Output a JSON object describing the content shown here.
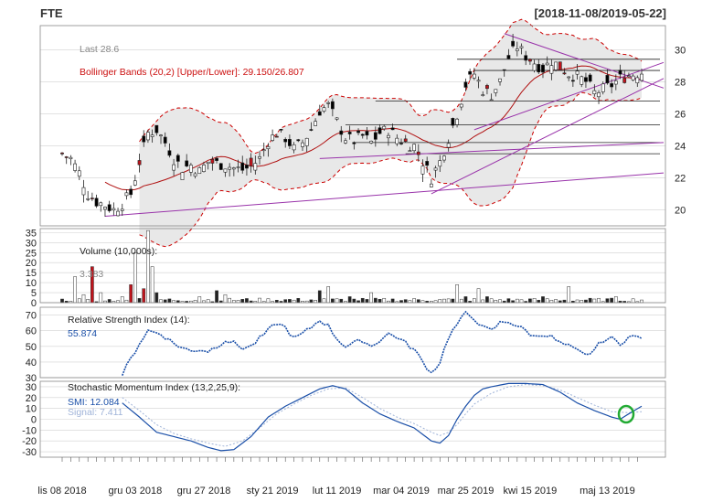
{
  "header": {
    "symbol": "FTE",
    "date_range": "[2018-11-08/2019-05-22]"
  },
  "price_panel": {
    "last_label": "Last 28.6",
    "bollinger_label": "Bollinger Bands (20,2) [Upper/Lower]: 29.150/26.807",
    "y_ticks": [
      20,
      22,
      24,
      26,
      28,
      30
    ],
    "ylim": [
      19,
      31.5
    ]
  },
  "volume_panel": {
    "title": "Volume (10,000s):",
    "last_value": "3.383",
    "y_ticks": [
      0,
      5,
      10,
      15,
      20,
      25,
      30,
      35
    ],
    "ylim": [
      0,
      37
    ]
  },
  "rsi_panel": {
    "title": "Relative Strength Index (14):",
    "last_value": "55.874",
    "y_ticks": [
      30,
      40,
      50,
      60,
      70
    ],
    "ylim": [
      30,
      75
    ]
  },
  "smi_panel": {
    "title": "Stochastic Momentum Index (13,2,25,9):",
    "smi_label": "SMI: 12.084",
    "signal_label": "Signal: 7.411",
    "y_ticks": [
      -30,
      -20,
      -10,
      0,
      10,
      20,
      30
    ],
    "ylim": [
      -35,
      35
    ]
  },
  "x_axis": {
    "labels": [
      "lis 08 2018",
      "gru 03 2018",
      "gru 27 2018",
      "sty 21 2019",
      "lut 11 2019",
      "mar 04 2019",
      "mar 25 2019",
      "kwi 15 2019",
      "maj 13 2019"
    ],
    "label_bar_index": [
      0,
      17,
      33,
      49,
      64,
      79,
      94,
      109,
      127
    ]
  },
  "colors": {
    "up_candle": "#ffffff",
    "down_candle": "#000000",
    "red_candle": "#c0141c",
    "bollinger": "#cc0000",
    "sma": "#b01010",
    "trendline": "#9933aa",
    "rsi_line": "#1a4fa8",
    "smi_line": "#1a4fa8",
    "signal_line": "#9fb3d8",
    "band_fill": "#e8e8e8",
    "grid": "#d0d0d0",
    "marker_circle": "#22aa33"
  },
  "chart_data": {
    "type": "candlestick",
    "bars": 136,
    "price_segments": [
      [
        0,
        23.5
      ],
      [
        2,
        23.2
      ],
      [
        4,
        22.3
      ],
      [
        6,
        21.0
      ],
      [
        8,
        20.5
      ],
      [
        10,
        20.3
      ],
      [
        12,
        20.0
      ],
      [
        14,
        20.4
      ],
      [
        16,
        21.0
      ],
      [
        18,
        23.0
      ],
      [
        20,
        24.8
      ],
      [
        22,
        25.0
      ],
      [
        24,
        24.2
      ],
      [
        26,
        23.2
      ],
      [
        28,
        22.6
      ],
      [
        30,
        22.8
      ],
      [
        32,
        22.4
      ],
      [
        34,
        23.0
      ],
      [
        36,
        22.9
      ],
      [
        38,
        22.8
      ],
      [
        40,
        22.6
      ],
      [
        42,
        22.5
      ],
      [
        44,
        22.7
      ],
      [
        46,
        23.2
      ],
      [
        48,
        24.3
      ],
      [
        50,
        24.8
      ],
      [
        52,
        24.5
      ],
      [
        54,
        23.8
      ],
      [
        56,
        24.2
      ],
      [
        58,
        25.0
      ],
      [
        60,
        26.2
      ],
      [
        62,
        26.5
      ],
      [
        64,
        25.5
      ],
      [
        66,
        24.5
      ],
      [
        68,
        24.3
      ],
      [
        70,
        24.6
      ],
      [
        72,
        24.2
      ],
      [
        74,
        24.8
      ],
      [
        76,
        25.0
      ],
      [
        78,
        24.5
      ],
      [
        80,
        24.2
      ],
      [
        82,
        24.0
      ],
      [
        84,
        23.0
      ],
      [
        86,
        22.0
      ],
      [
        88,
        23.0
      ],
      [
        90,
        24.5
      ],
      [
        92,
        26.0
      ],
      [
        94,
        27.8
      ],
      [
        96,
        28.5
      ],
      [
        98,
        27.5
      ],
      [
        100,
        27.2
      ],
      [
        102,
        28.0
      ],
      [
        104,
        29.5
      ],
      [
        106,
        30.2
      ],
      [
        108,
        29.6
      ],
      [
        110,
        29.2
      ],
      [
        112,
        28.8
      ],
      [
        114,
        29.3
      ],
      [
        116,
        28.9
      ],
      [
        118,
        28.5
      ],
      [
        120,
        28.3
      ],
      [
        122,
        28.0
      ],
      [
        124,
        27.3
      ],
      [
        126,
        27.5
      ],
      [
        128,
        27.8
      ],
      [
        130,
        28.2
      ],
      [
        132,
        28.4
      ],
      [
        135,
        28.6
      ]
    ],
    "volume_spikes": [
      [
        3,
        13
      ],
      [
        5,
        4
      ],
      [
        7,
        18
      ],
      [
        9,
        5
      ],
      [
        14,
        3
      ],
      [
        16,
        9
      ],
      [
        17,
        25
      ],
      [
        19,
        7
      ],
      [
        20,
        36
      ],
      [
        21,
        18
      ],
      [
        22,
        5
      ],
      [
        32,
        3
      ],
      [
        36,
        6
      ],
      [
        38,
        4
      ],
      [
        60,
        6
      ],
      [
        62,
        8
      ],
      [
        67,
        3
      ],
      [
        72,
        5
      ],
      [
        92,
        9
      ],
      [
        94,
        3
      ],
      [
        97,
        7
      ],
      [
        99,
        3
      ],
      [
        112,
        3
      ],
      [
        118,
        8
      ],
      [
        129,
        3
      ]
    ],
    "rsi_segments": [
      [
        14,
        32
      ],
      [
        18,
        52
      ],
      [
        20,
        60
      ],
      [
        23,
        58
      ],
      [
        26,
        52
      ],
      [
        28,
        49
      ],
      [
        30,
        47
      ],
      [
        32,
        48
      ],
      [
        34,
        47
      ],
      [
        36,
        50
      ],
      [
        38,
        54
      ],
      [
        40,
        52
      ],
      [
        42,
        49
      ],
      [
        44,
        50
      ],
      [
        46,
        55
      ],
      [
        48,
        60
      ],
      [
        50,
        65
      ],
      [
        52,
        62
      ],
      [
        54,
        55
      ],
      [
        56,
        58
      ],
      [
        58,
        62
      ],
      [
        60,
        67
      ],
      [
        62,
        63
      ],
      [
        64,
        55
      ],
      [
        66,
        50
      ],
      [
        68,
        52
      ],
      [
        70,
        54
      ],
      [
        72,
        50
      ],
      [
        74,
        54
      ],
      [
        76,
        58
      ],
      [
        78,
        56
      ],
      [
        80,
        52
      ],
      [
        82,
        48
      ],
      [
        84,
        40
      ],
      [
        86,
        33
      ],
      [
        88,
        40
      ],
      [
        90,
        56
      ],
      [
        92,
        64
      ],
      [
        94,
        71
      ],
      [
        96,
        68
      ],
      [
        98,
        62
      ],
      [
        100,
        60
      ],
      [
        102,
        65
      ],
      [
        104,
        66
      ],
      [
        106,
        63
      ],
      [
        108,
        60
      ],
      [
        110,
        56
      ],
      [
        112,
        58
      ],
      [
        114,
        56
      ],
      [
        116,
        52
      ],
      [
        118,
        50
      ],
      [
        120,
        47
      ],
      [
        122,
        44
      ],
      [
        124,
        48
      ],
      [
        126,
        54
      ],
      [
        128,
        55
      ],
      [
        130,
        52
      ],
      [
        132,
        56
      ],
      [
        135,
        56
      ]
    ],
    "smi_segments": [
      [
        14,
        15
      ],
      [
        18,
        2
      ],
      [
        22,
        -12
      ],
      [
        26,
        -16
      ],
      [
        30,
        -20
      ],
      [
        34,
        -26
      ],
      [
        37,
        -29
      ],
      [
        40,
        -28
      ],
      [
        44,
        -16
      ],
      [
        48,
        2
      ],
      [
        52,
        12
      ],
      [
        56,
        20
      ],
      [
        60,
        28
      ],
      [
        63,
        31
      ],
      [
        66,
        28
      ],
      [
        70,
        15
      ],
      [
        74,
        5
      ],
      [
        78,
        -2
      ],
      [
        82,
        -8
      ],
      [
        86,
        -20
      ],
      [
        88,
        -22
      ],
      [
        90,
        -15
      ],
      [
        92,
        0
      ],
      [
        94,
        12
      ],
      [
        96,
        22
      ],
      [
        98,
        28
      ],
      [
        100,
        30
      ],
      [
        104,
        33
      ],
      [
        108,
        33
      ],
      [
        112,
        32
      ],
      [
        116,
        25
      ],
      [
        120,
        15
      ],
      [
        124,
        8
      ],
      [
        128,
        2
      ],
      [
        130,
        0
      ],
      [
        132,
        5
      ],
      [
        135,
        12
      ]
    ],
    "signal_segments": [
      [
        14,
        20
      ],
      [
        18,
        8
      ],
      [
        22,
        -5
      ],
      [
        26,
        -13
      ],
      [
        30,
        -18
      ],
      [
        34,
        -22
      ],
      [
        38,
        -25
      ],
      [
        42,
        -20
      ],
      [
        46,
        -8
      ],
      [
        50,
        5
      ],
      [
        54,
        14
      ],
      [
        58,
        22
      ],
      [
        62,
        28
      ],
      [
        66,
        29
      ],
      [
        70,
        20
      ],
      [
        74,
        10
      ],
      [
        78,
        2
      ],
      [
        82,
        -4
      ],
      [
        86,
        -12
      ],
      [
        88,
        -15
      ],
      [
        90,
        -12
      ],
      [
        92,
        -5
      ],
      [
        94,
        5
      ],
      [
        96,
        14
      ],
      [
        100,
        24
      ],
      [
        104,
        30
      ],
      [
        108,
        32
      ],
      [
        112,
        31
      ],
      [
        116,
        27
      ],
      [
        120,
        20
      ],
      [
        124,
        13
      ],
      [
        128,
        7
      ],
      [
        132,
        6
      ],
      [
        135,
        7
      ]
    ],
    "resistance_levels": [
      28.7,
      29.4,
      26.8,
      25.3,
      24.2,
      23.5
    ],
    "resistance_start_bar": [
      96,
      92,
      73,
      66,
      68,
      80
    ],
    "trendlines": [
      {
        "from": [
          10,
          19.6
        ],
        "to": [
          135,
          22.3
        ]
      },
      {
        "from": [
          86,
          21.0
        ],
        "to": [
          135,
          28.2
        ]
      },
      {
        "from": [
          96,
          25.0
        ],
        "to": [
          135,
          29.2
        ]
      },
      {
        "from": [
          103,
          31.0
        ],
        "to": [
          135,
          27.6
        ]
      },
      {
        "from": [
          60,
          23.2
        ],
        "to": [
          135,
          24.2
        ]
      }
    ]
  }
}
